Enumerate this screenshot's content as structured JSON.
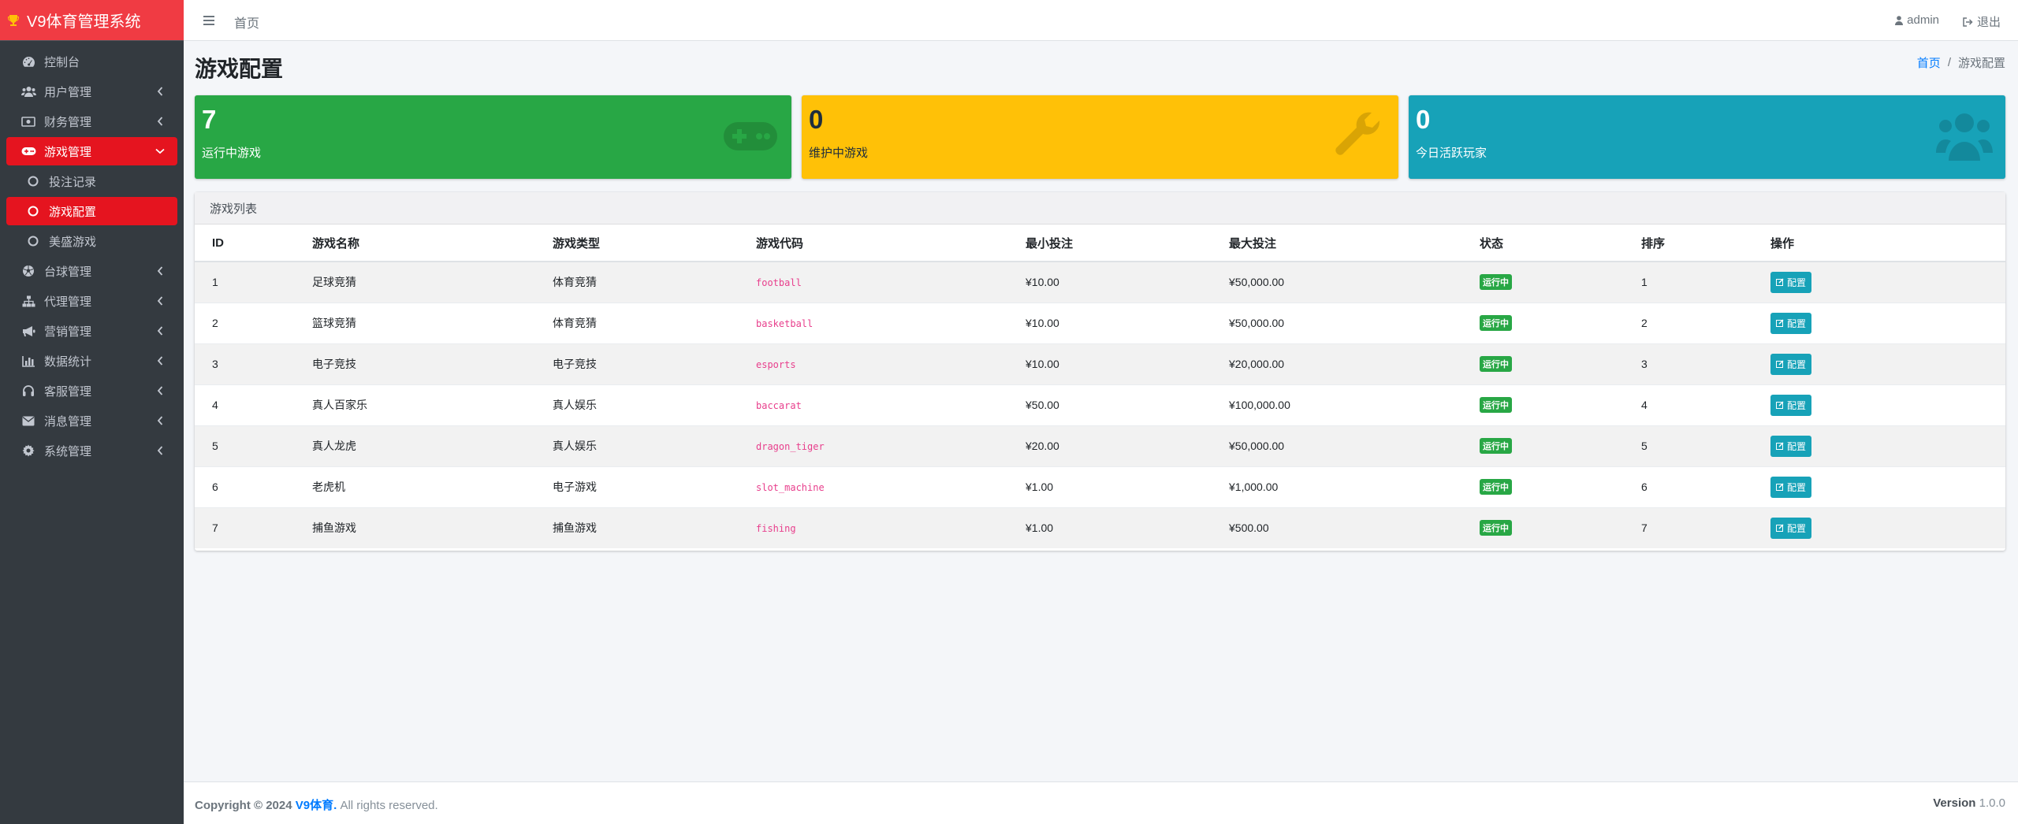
{
  "brand": {
    "title": "V9体育管理系统"
  },
  "sidebar": {
    "items": [
      {
        "label": "控制台",
        "icon": "dashboard-icon"
      },
      {
        "label": "用户管理",
        "icon": "users-icon"
      },
      {
        "label": "财务管理",
        "icon": "money-icon"
      },
      {
        "label": "游戏管理",
        "icon": "gamepad-icon"
      },
      {
        "label": "投注记录",
        "icon": "circle-icon"
      },
      {
        "label": "游戏配置",
        "icon": "circle-icon"
      },
      {
        "label": "美盛游戏",
        "icon": "circle-icon"
      },
      {
        "label": "台球管理",
        "icon": "soccer-ball-icon"
      },
      {
        "label": "代理管理",
        "icon": "sitemap-icon"
      },
      {
        "label": "营销管理",
        "icon": "bullhorn-icon"
      },
      {
        "label": "数据统计",
        "icon": "bar-chart-icon"
      },
      {
        "label": "客服管理",
        "icon": "headset-icon"
      },
      {
        "label": "消息管理",
        "icon": "envelope-icon"
      },
      {
        "label": "系统管理",
        "icon": "gear-icon"
      }
    ]
  },
  "header": {
    "home": "首页",
    "user": "admin",
    "logout": "退出"
  },
  "page": {
    "title": "游戏配置"
  },
  "breadcrumb": {
    "home": "首页",
    "sep": "/",
    "current": "游戏配置"
  },
  "stats": [
    {
      "value": "7",
      "label": "运行中游戏",
      "color": "#28a745",
      "icon": "gamepad-icon"
    },
    {
      "value": "0",
      "label": "维护中游戏",
      "color": "#ffc107",
      "icon": "wrench-icon"
    },
    {
      "value": "0",
      "label": "今日活跃玩家",
      "color": "#17a2b8",
      "icon": "users-icon"
    }
  ],
  "game_list": {
    "title": "游戏列表",
    "columns": [
      "ID",
      "游戏名称",
      "游戏类型",
      "游戏代码",
      "最小投注",
      "最大投注",
      "状态",
      "排序",
      "操作"
    ],
    "rows": [
      {
        "id": "1",
        "name": "足球竞猜",
        "type": "体育竞猜",
        "code": "football",
        "min": "¥10.00",
        "max": "¥50,000.00",
        "status": "运行中",
        "sort": "1",
        "action": "配置"
      },
      {
        "id": "2",
        "name": "篮球竞猜",
        "type": "体育竞猜",
        "code": "basketball",
        "min": "¥10.00",
        "max": "¥50,000.00",
        "status": "运行中",
        "sort": "2",
        "action": "配置"
      },
      {
        "id": "3",
        "name": "电子竞技",
        "type": "电子竞技",
        "code": "esports",
        "min": "¥10.00",
        "max": "¥20,000.00",
        "status": "运行中",
        "sort": "3",
        "action": "配置"
      },
      {
        "id": "4",
        "name": "真人百家乐",
        "type": "真人娱乐",
        "code": "baccarat",
        "min": "¥50.00",
        "max": "¥100,000.00",
        "status": "运行中",
        "sort": "4",
        "action": "配置"
      },
      {
        "id": "5",
        "name": "真人龙虎",
        "type": "真人娱乐",
        "code": "dragon_tiger",
        "min": "¥20.00",
        "max": "¥50,000.00",
        "status": "运行中",
        "sort": "5",
        "action": "配置"
      },
      {
        "id": "6",
        "name": "老虎机",
        "type": "电子游戏",
        "code": "slot_machine",
        "min": "¥1.00",
        "max": "¥1,000.00",
        "status": "运行中",
        "sort": "6",
        "action": "配置"
      },
      {
        "id": "7",
        "name": "捕鱼游戏",
        "type": "捕鱼游戏",
        "code": "fishing",
        "min": "¥1.00",
        "max": "¥500.00",
        "status": "运行中",
        "sort": "7",
        "action": "配置"
      }
    ]
  },
  "footer": {
    "copyright_prefix": "Copyright © 2024",
    "brand": "V9体育.",
    "rights": "All rights reserved.",
    "version_label": "Version",
    "version": "1.0.0"
  }
}
